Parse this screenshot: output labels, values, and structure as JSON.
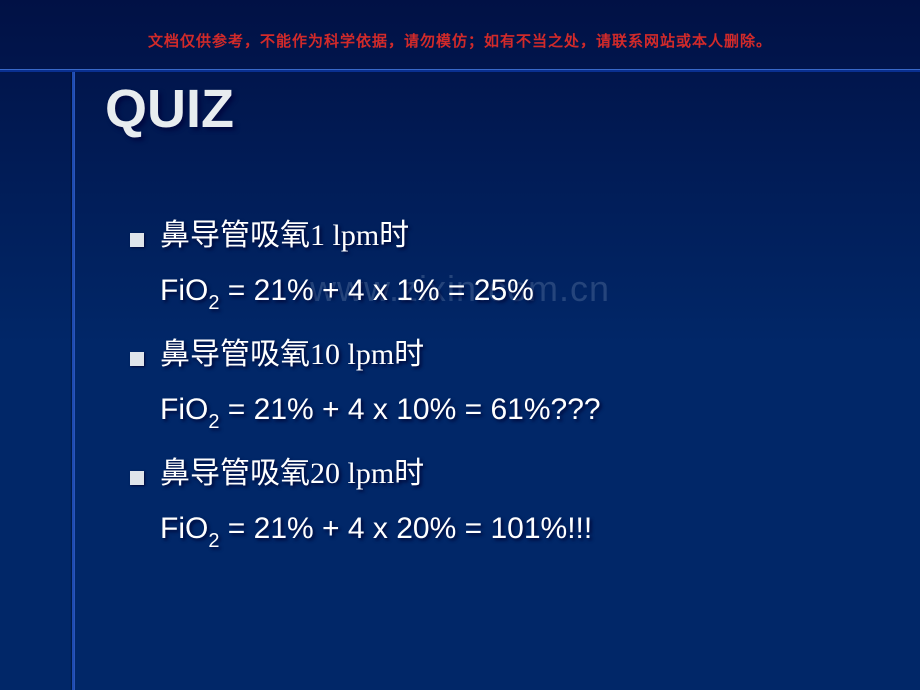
{
  "disclaimer": "文档仅供参考，不能作为科学依据，请勿模仿；如有不当之处，请联系网站或本人删除。",
  "title": "QUIZ",
  "watermark": "www.zixin.com.cn",
  "lines": [
    {
      "bullet": true,
      "text": "鼻导管吸氧1 lpm时"
    },
    {
      "bullet": false,
      "prefix": "FiO",
      "sub": "2",
      "rest": " = 21% + 4 x 1% = 25%"
    },
    {
      "bullet": true,
      "text": "鼻导管吸氧10 lpm时"
    },
    {
      "bullet": false,
      "prefix": "FiO",
      "sub": "2",
      "rest": " = 21% + 4 x 10% = 61%???"
    },
    {
      "bullet": true,
      "text": "鼻导管吸氧20 lpm时"
    },
    {
      "bullet": false,
      "prefix": "FiO",
      "sub": "2",
      "rest": " = 21% + 4 x 20% = 101%!!!"
    }
  ],
  "colors": {
    "bg_top": "#011145",
    "bg_bottom": "#012768",
    "text": "#ffffff",
    "title": "#e8ecef",
    "disclaimer": "#d12a2a",
    "line": "#1e4bb0"
  },
  "fonts": {
    "title_size": 54,
    "body_size": 30,
    "disclaimer_size": 15
  }
}
